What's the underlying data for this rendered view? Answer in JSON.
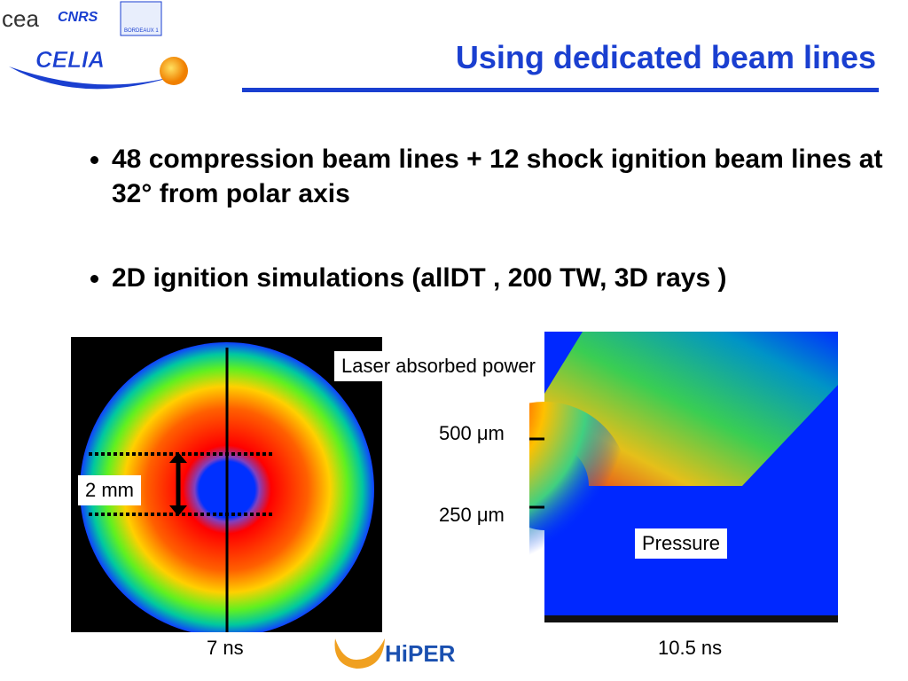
{
  "header": {
    "title": "Using dedicated beam lines",
    "logos": {
      "cea": "cea",
      "cnrs": "CNRS",
      "university": "BORDEAUX 1",
      "celia": "CELIA"
    }
  },
  "bullets": [
    "48 compression beam lines + 12 shock ignition beam lines at 32° from polar axis",
    "2D ignition simulations (allDT , 200 TW, 3D rays )"
  ],
  "figures": {
    "left": {
      "scale_label": "2 mm",
      "time": "7 ns"
    },
    "right": {
      "top_label": "Laser absorbed power",
      "bottom_label": "Pressure",
      "radius_outer": "500 μm",
      "radius_inner": "250 μm",
      "time": "10.5 ns"
    }
  },
  "footer": {
    "logo": "HiPER"
  }
}
